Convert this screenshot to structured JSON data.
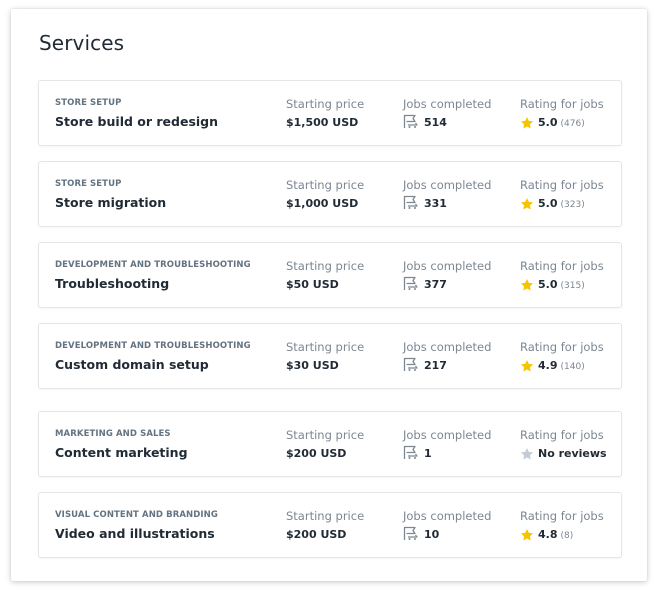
{
  "page": {
    "title": "Services"
  },
  "labels": {
    "price": "Starting price",
    "jobs": "Jobs completed",
    "rating": "Rating for jobs"
  },
  "colors": {
    "star_filled": "#f5c500",
    "star_empty": "#c4cdd5"
  },
  "services": [
    {
      "category": "STORE SETUP",
      "name": "Store build or redesign",
      "price": "$1,500 USD",
      "jobs": "514",
      "rating": "5.0",
      "count": "(476)"
    },
    {
      "category": "STORE SETUP",
      "name": "Store migration",
      "price": "$1,000 USD",
      "jobs": "331",
      "rating": "5.0",
      "count": "(323)"
    },
    {
      "category": "DEVELOPMENT AND TROUBLESHOOTING",
      "name": "Troubleshooting",
      "price": "$50 USD",
      "jobs": "377",
      "rating": "5.0",
      "count": "(315)"
    },
    {
      "category": "DEVELOPMENT AND TROUBLESHOOTING",
      "name": "Custom domain setup",
      "price": "$30 USD",
      "jobs": "217",
      "rating": "4.9",
      "count": "(140)"
    },
    {
      "category": "MARKETING AND SALES",
      "name": "Content marketing",
      "price": "$200 USD",
      "jobs": "1",
      "rating": "No reviews",
      "count": ""
    },
    {
      "category": "VISUAL CONTENT AND BRANDING",
      "name": "Video and illustrations",
      "price": "$200 USD",
      "jobs": "10",
      "rating": "4.8",
      "count": "(8)"
    }
  ]
}
